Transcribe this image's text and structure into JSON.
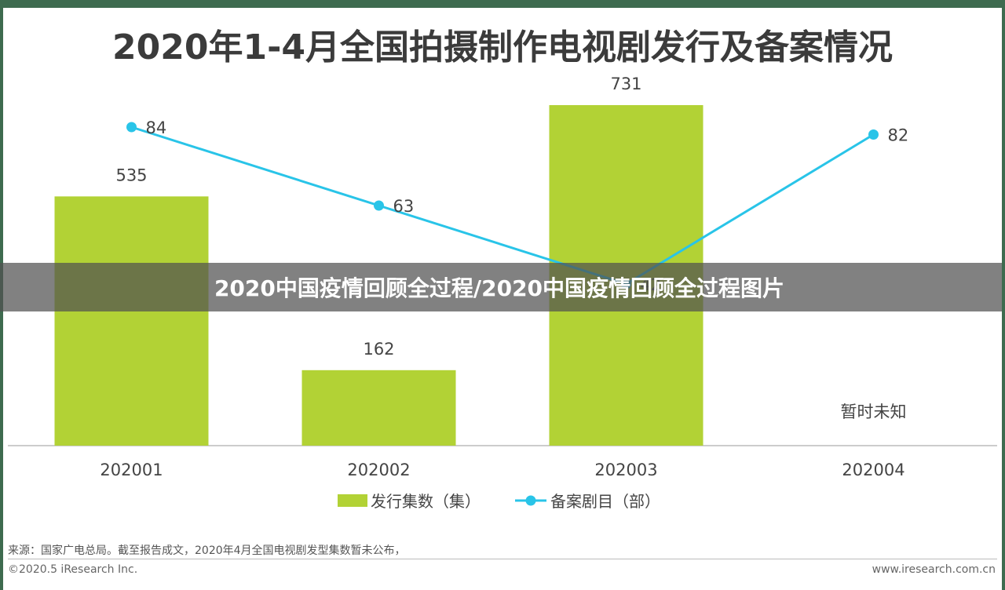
{
  "chart_data": {
    "type": "bar+line",
    "title": "2020年1-4月全国拍摄制作电视剧发行及备案情况",
    "categories": [
      "202001",
      "202002",
      "202003",
      "202004"
    ],
    "series": [
      {
        "name": "发行集数（集）",
        "type": "bar",
        "color": "#b2d235",
        "values": [
          535,
          162,
          731,
          null
        ],
        "labels": [
          "535",
          "162",
          "731",
          "暂时未知"
        ]
      },
      {
        "name": "备案剧目（部）",
        "type": "line",
        "color": "#29c4e8",
        "values": [
          84,
          63,
          42,
          82
        ],
        "labels": [
          "84",
          "63",
          "42",
          "82"
        ]
      }
    ],
    "legend_position": "bottom",
    "grid": false
  },
  "overlay": {
    "text": "2020中国疫情回顾全过程/2020中国疫情回顾全过程图片"
  },
  "footer": {
    "source": "来源：国家广电总局。截至报告成文，2020年4月全国电视剧发型集数暂未公布，",
    "copyright": "©2020.5 iResearch Inc.",
    "website": "www.iresearch.com.cn"
  }
}
